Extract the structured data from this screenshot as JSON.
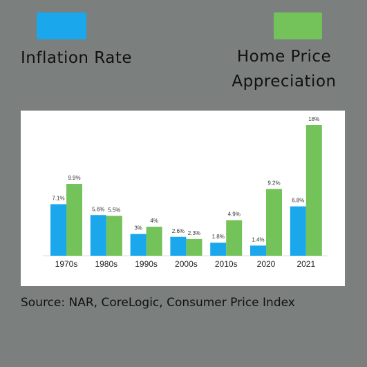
{
  "chart_data": {
    "type": "bar",
    "categories": [
      "1970s",
      "1980s",
      "1990s",
      "2000s",
      "2010s",
      "2020",
      "2021"
    ],
    "series": [
      {
        "name": "Inflation Rate",
        "color": "#1aa7ec",
        "values": [
          7.1,
          5.6,
          3,
          2.6,
          1.8,
          1.4,
          6.8
        ],
        "value_labels": [
          "7.1%",
          "5.6%",
          "3%",
          "2.6%",
          "1.8%",
          "1.4%",
          "6.8%"
        ]
      },
      {
        "name": "Home Price Appreciation",
        "color": "#73c25a",
        "values": [
          9.9,
          5.5,
          4,
          2.3,
          4.9,
          9.2,
          18
        ],
        "value_labels": [
          "9.9%",
          "5.5%",
          "4%",
          "2.3%",
          "4.9%",
          "9.2%",
          "18%"
        ]
      }
    ],
    "ylim": [
      0,
      18
    ],
    "source": "Source: NAR, CoreLogic, Consumer Price Index"
  }
}
